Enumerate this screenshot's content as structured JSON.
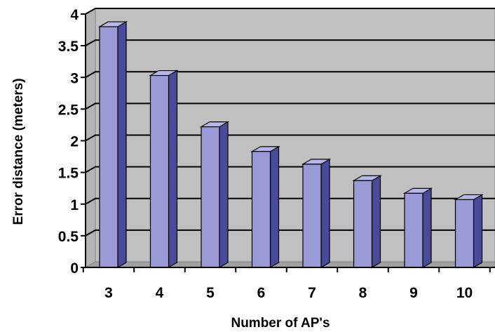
{
  "chart_data": {
    "type": "bar",
    "xlabel": "Number of AP's",
    "ylabel": "Error distance (meters)",
    "categories": [
      "3",
      "4",
      "5",
      "6",
      "7",
      "8",
      "9",
      "10"
    ],
    "values": [
      3.8,
      3.03,
      2.22,
      1.83,
      1.63,
      1.37,
      1.17,
      1.07
    ],
    "ylim": [
      0,
      4
    ],
    "yticks": [
      "0",
      "0.5",
      "1",
      "1.5",
      "2",
      "2.5",
      "3",
      "3.5",
      "4"
    ],
    "grid": true,
    "style": "3d-bar",
    "colors": {
      "bar_front": "#9a9ad6",
      "bar_side": "#4a4a9a",
      "bar_top": "#b8b8e8",
      "wall": "#c0c0c0",
      "floor": "#a0a0a0",
      "gridline": "#000000"
    }
  }
}
